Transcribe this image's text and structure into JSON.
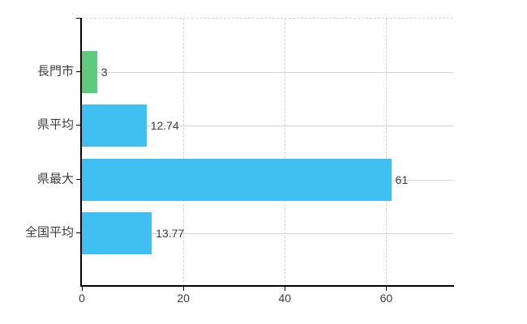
{
  "chart_data": {
    "type": "bar",
    "orientation": "horizontal",
    "title": "",
    "xlabel": "",
    "ylabel": "",
    "categories": [
      "長門市",
      "県平均",
      "県最大",
      "全国平均"
    ],
    "values": [
      3,
      12.74,
      61,
      13.77
    ],
    "value_labels": [
      "3",
      "12.74",
      "61",
      "13.77"
    ],
    "bar_colors": [
      "#5fc97e",
      "#3fc0f0",
      "#3fc0f0",
      "#3fc0f0"
    ],
    "xlim": [
      0,
      73.2
    ],
    "x_ticks": [
      0,
      20,
      40,
      60
    ],
    "x_tick_labels": [
      "0",
      "20",
      "40",
      "60"
    ],
    "grid": {
      "vertical": "dashed",
      "horizontal_category_lines": "solid",
      "top_border": "dashed"
    },
    "legend": "none",
    "colors": {
      "grid": "#d3d3d3",
      "axis": "#000000",
      "text": "#3c3c3c",
      "background": "#ffffff",
      "series_default": "#3fc0f0",
      "series_highlight": "#5fc97e"
    }
  }
}
